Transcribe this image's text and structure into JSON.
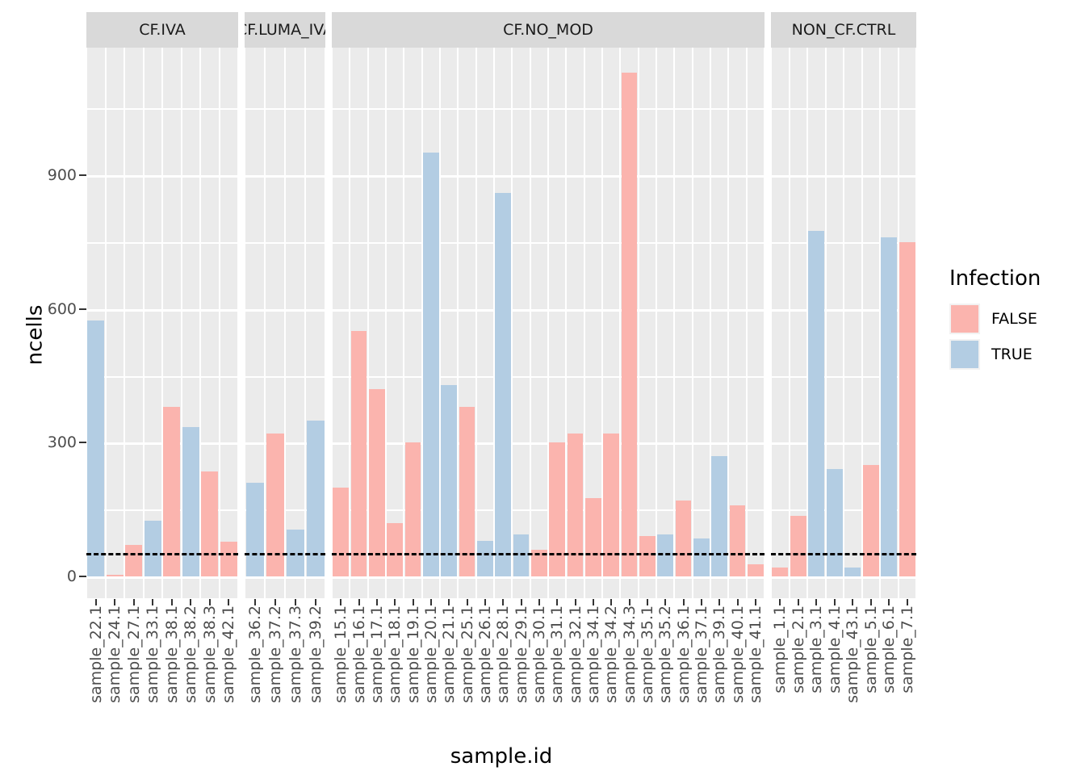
{
  "chart_data": {
    "type": "bar",
    "title": "",
    "xlabel": "sample.id",
    "ylabel": "ncells",
    "y_ticks": [
      0,
      300,
      600,
      900
    ],
    "y_minor_step": 150,
    "ylim": [
      0,
      1185
    ],
    "grid": "on",
    "legend": {
      "title": "Infection",
      "position": "right",
      "entries": [
        {
          "label": "FALSE",
          "color": "#FBB4AE"
        },
        {
          "label": "TRUE",
          "color": "#B3CDE3"
        }
      ]
    },
    "reference_line": {
      "y": 50,
      "style": "dashed",
      "color": "#000000"
    },
    "facets": [
      {
        "label": "CF.IVA",
        "bars": [
          {
            "id": "sample_22.1",
            "value": 575,
            "infection": "TRUE"
          },
          {
            "id": "sample_24.1",
            "value": 4,
            "infection": "FALSE"
          },
          {
            "id": "sample_27.1",
            "value": 70,
            "infection": "FALSE"
          },
          {
            "id": "sample_33.1",
            "value": 125,
            "infection": "TRUE"
          },
          {
            "id": "sample_38.1",
            "value": 380,
            "infection": "FALSE"
          },
          {
            "id": "sample_38.2",
            "value": 335,
            "infection": "TRUE"
          },
          {
            "id": "sample_38.3",
            "value": 235,
            "infection": "FALSE"
          },
          {
            "id": "sample_42.1",
            "value": 78,
            "infection": "FALSE"
          }
        ]
      },
      {
        "label": "CF.LUMA_IVA",
        "bars": [
          {
            "id": "sample_36.2",
            "value": 210,
            "infection": "TRUE"
          },
          {
            "id": "sample_37.2",
            "value": 320,
            "infection": "FALSE"
          },
          {
            "id": "sample_37.3",
            "value": 105,
            "infection": "TRUE"
          },
          {
            "id": "sample_39.2",
            "value": 350,
            "infection": "TRUE"
          }
        ]
      },
      {
        "label": "CF.NO_MOD",
        "bars": [
          {
            "id": "sample_15.1",
            "value": 200,
            "infection": "FALSE"
          },
          {
            "id": "sample_16.1",
            "value": 550,
            "infection": "FALSE"
          },
          {
            "id": "sample_17.1",
            "value": 420,
            "infection": "FALSE"
          },
          {
            "id": "sample_18.1",
            "value": 120,
            "infection": "FALSE"
          },
          {
            "id": "sample_19.1",
            "value": 300,
            "infection": "FALSE"
          },
          {
            "id": "sample_20.1",
            "value": 950,
            "infection": "TRUE"
          },
          {
            "id": "sample_21.1",
            "value": 430,
            "infection": "TRUE"
          },
          {
            "id": "sample_25.1",
            "value": 380,
            "infection": "FALSE"
          },
          {
            "id": "sample_26.1",
            "value": 80,
            "infection": "TRUE"
          },
          {
            "id": "sample_28.1",
            "value": 860,
            "infection": "TRUE"
          },
          {
            "id": "sample_29.1",
            "value": 95,
            "infection": "TRUE"
          },
          {
            "id": "sample_30.1",
            "value": 60,
            "infection": "FALSE"
          },
          {
            "id": "sample_31.1",
            "value": 300,
            "infection": "FALSE"
          },
          {
            "id": "sample_32.1",
            "value": 320,
            "infection": "FALSE"
          },
          {
            "id": "sample_34.1",
            "value": 175,
            "infection": "FALSE"
          },
          {
            "id": "sample_34.2",
            "value": 320,
            "infection": "FALSE"
          },
          {
            "id": "sample_34.3",
            "value": 1130,
            "infection": "FALSE"
          },
          {
            "id": "sample_35.1",
            "value": 90,
            "infection": "FALSE"
          },
          {
            "id": "sample_35.2",
            "value": 95,
            "infection": "TRUE"
          },
          {
            "id": "sample_36.1",
            "value": 170,
            "infection": "FALSE"
          },
          {
            "id": "sample_37.1",
            "value": 85,
            "infection": "TRUE"
          },
          {
            "id": "sample_39.1",
            "value": 270,
            "infection": "TRUE"
          },
          {
            "id": "sample_40.1",
            "value": 160,
            "infection": "FALSE"
          },
          {
            "id": "sample_41.1",
            "value": 28,
            "infection": "FALSE"
          }
        ]
      },
      {
        "label": "NON_CF.CTRL",
        "bars": [
          {
            "id": "sample_1.1",
            "value": 20,
            "infection": "FALSE"
          },
          {
            "id": "sample_2.1",
            "value": 135,
            "infection": "FALSE"
          },
          {
            "id": "sample_3.1",
            "value": 775,
            "infection": "TRUE"
          },
          {
            "id": "sample_4.1",
            "value": 240,
            "infection": "TRUE"
          },
          {
            "id": "sample_43.1",
            "value": 20,
            "infection": "TRUE"
          },
          {
            "id": "sample_5.1",
            "value": 250,
            "infection": "FALSE"
          },
          {
            "id": "sample_6.1",
            "value": 760,
            "infection": "TRUE"
          },
          {
            "id": "sample_7.1",
            "value": 750,
            "infection": "FALSE"
          }
        ]
      }
    ]
  },
  "colors": {
    "false_fill": "#FBB4AE",
    "true_fill": "#B3CDE3",
    "panel_bg": "#EBEBEB",
    "strip_bg": "#D9D9D9",
    "gridline": "#FFFFFF",
    "axis_text": "#4D4D4D",
    "reference_line": "#000000"
  }
}
